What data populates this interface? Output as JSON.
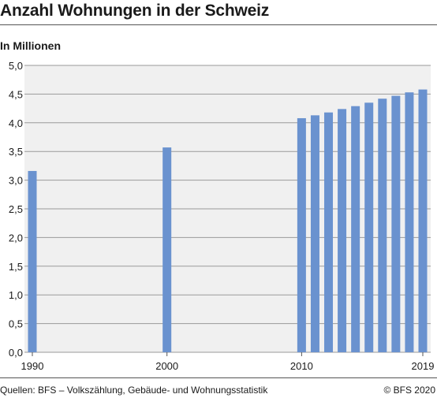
{
  "title": "Anzahl Wohnungen in der Schweiz",
  "unit_label": "In Millionen",
  "source": "Quellen: BFS – Volkszählung, Gebäude- und Wohnungsstatistik",
  "copyright": "© BFS 2020",
  "colors": {
    "bar": "#6a92cf",
    "plot_bg": "#f0f0f0",
    "grid": "#9a9a9a"
  },
  "chart_data": {
    "type": "bar",
    "x": [
      1990,
      2000,
      2010,
      2011,
      2012,
      2013,
      2014,
      2015,
      2016,
      2017,
      2018,
      2019
    ],
    "values": [
      3.16,
      3.57,
      4.08,
      4.13,
      4.18,
      4.24,
      4.29,
      4.35,
      4.42,
      4.47,
      4.53,
      4.58
    ],
    "xlim": [
      1990,
      2019
    ],
    "x_tick_labels": [
      "1990",
      "2000",
      "2010",
      "2019"
    ],
    "ylim": [
      0,
      5
    ],
    "y_tick_labels": [
      "0,0",
      "0,5",
      "1,0",
      "1,5",
      "2,0",
      "2,5",
      "3,0",
      "3,5",
      "4,0",
      "4,5",
      "5,0"
    ],
    "grid": true
  }
}
